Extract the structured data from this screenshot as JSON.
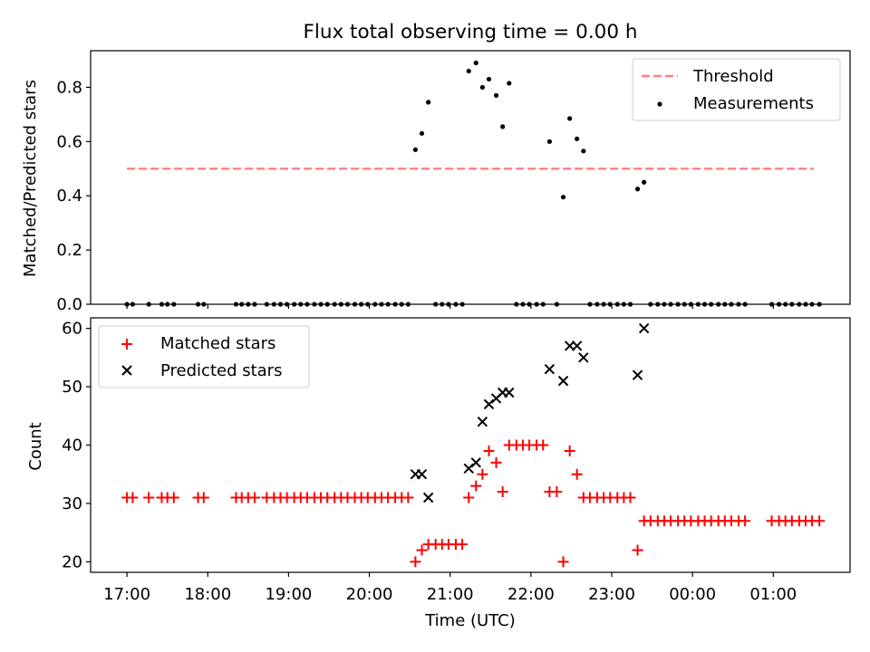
{
  "title": "Flux total observing time = 0.00 h",
  "colors": {
    "threshold": "#ff7f7f",
    "measurements": "#000000",
    "matched": "#ff0000",
    "predicted": "#000000"
  },
  "chart_data": [
    {
      "type": "scatter",
      "ylabel": "Matched/Predicted stars",
      "xlim": [
        16.55,
        25.95
      ],
      "ylim": [
        0,
        0.935
      ],
      "yticks": [
        0.0,
        0.2,
        0.4,
        0.6,
        0.8
      ],
      "ytick_labels": [
        "0.0",
        "0.2",
        "0.4",
        "0.6",
        "0.8"
      ],
      "legend_position": "top-right",
      "threshold": {
        "name": "Threshold",
        "x_range": [
          17.0,
          25.5
        ],
        "value": 0.5
      },
      "series": [
        {
          "name": "Measurements",
          "x": [
            17.0,
            17.07,
            17.27,
            17.43,
            17.5,
            17.58,
            17.88,
            17.95,
            18.35,
            18.42,
            18.5,
            18.58,
            18.73,
            18.82,
            18.9,
            18.98,
            19.07,
            19.15,
            19.23,
            19.32,
            19.4,
            19.48,
            19.57,
            19.65,
            19.73,
            19.82,
            19.9,
            19.98,
            20.07,
            20.15,
            20.23,
            20.32,
            20.4,
            20.48,
            20.57,
            20.65,
            20.73,
            20.82,
            20.9,
            20.98,
            21.07,
            21.15,
            21.23,
            21.32,
            21.4,
            21.48,
            21.57,
            21.65,
            21.73,
            21.82,
            21.9,
            21.98,
            22.07,
            22.15,
            22.23,
            22.32,
            22.4,
            22.48,
            22.57,
            22.65,
            22.73,
            22.82,
            22.9,
            22.98,
            23.07,
            23.15,
            23.23,
            23.32,
            23.4,
            23.48,
            23.57,
            23.65,
            23.73,
            23.82,
            23.9,
            23.98,
            24.07,
            24.15,
            24.23,
            24.32,
            24.4,
            24.48,
            24.57,
            24.65,
            24.98,
            25.07,
            25.15,
            25.23,
            25.32,
            25.4,
            25.48,
            25.57
          ],
          "y": [
            0,
            0,
            0,
            0,
            0,
            0,
            0,
            0,
            0,
            0,
            0,
            0,
            0,
            0,
            0,
            0,
            0,
            0,
            0,
            0,
            0,
            0,
            0,
            0,
            0,
            0,
            0,
            0,
            0,
            0,
            0,
            0,
            0,
            0,
            0.57,
            0.63,
            0.745,
            0,
            0,
            0,
            0,
            0,
            0.86,
            0.89,
            0.8,
            0.83,
            0.77,
            0.655,
            0.815,
            0,
            0,
            0,
            0,
            0,
            0.6,
            0,
            0.395,
            0.685,
            0.61,
            0.565,
            0,
            0,
            0,
            0,
            0,
            0,
            0,
            0.425,
            0.45,
            0,
            0,
            0,
            0,
            0,
            0,
            0,
            0,
            0,
            0,
            0,
            0,
            0,
            0,
            0,
            0,
            0,
            0,
            0,
            0,
            0,
            0,
            0
          ]
        }
      ]
    },
    {
      "type": "scatter",
      "ylabel": "Count",
      "xlabel": "Time (UTC)",
      "xlim": [
        16.55,
        25.95
      ],
      "ylim": [
        18.2,
        61.8
      ],
      "yticks": [
        20,
        30,
        40,
        50,
        60
      ],
      "ytick_labels": [
        "20",
        "30",
        "40",
        "50",
        "60"
      ],
      "xticks": [
        17,
        18,
        19,
        20,
        21,
        22,
        23,
        24,
        25
      ],
      "xtick_labels": [
        "17:00",
        "18:00",
        "19:00",
        "20:00",
        "21:00",
        "22:00",
        "23:00",
        "00:00",
        "01:00"
      ],
      "legend_position": "top-left",
      "series": [
        {
          "name": "Matched stars",
          "x": [
            17.0,
            17.07,
            17.27,
            17.43,
            17.5,
            17.58,
            17.88,
            17.95,
            18.35,
            18.42,
            18.5,
            18.58,
            18.73,
            18.82,
            18.9,
            18.98,
            19.07,
            19.15,
            19.23,
            19.32,
            19.4,
            19.48,
            19.57,
            19.65,
            19.73,
            19.82,
            19.9,
            19.98,
            20.07,
            20.15,
            20.23,
            20.32,
            20.4,
            20.48,
            20.57,
            20.65,
            20.73,
            20.82,
            20.9,
            20.98,
            21.07,
            21.15,
            21.23,
            21.32,
            21.4,
            21.48,
            21.57,
            21.65,
            21.73,
            21.82,
            21.9,
            21.98,
            22.07,
            22.15,
            22.23,
            22.32,
            22.4,
            22.48,
            22.57,
            22.65,
            22.73,
            22.82,
            22.9,
            22.98,
            23.07,
            23.15,
            23.23,
            23.32,
            23.4,
            23.48,
            23.57,
            23.65,
            23.73,
            23.82,
            23.9,
            23.98,
            24.07,
            24.15,
            24.23,
            24.32,
            24.4,
            24.48,
            24.57,
            24.65,
            24.98,
            25.07,
            25.15,
            25.23,
            25.32,
            25.4,
            25.48,
            25.57
          ],
          "y": [
            31,
            31,
            31,
            31,
            31,
            31,
            31,
            31,
            31,
            31,
            31,
            31,
            31,
            31,
            31,
            31,
            31,
            31,
            31,
            31,
            31,
            31,
            31,
            31,
            31,
            31,
            31,
            31,
            31,
            31,
            31,
            31,
            31,
            31,
            20,
            22,
            23,
            23,
            23,
            23,
            23,
            23,
            31,
            33,
            35,
            39,
            37,
            32,
            40,
            40,
            40,
            40,
            40,
            40,
            32,
            32,
            20,
            39,
            35,
            31,
            31,
            31,
            31,
            31,
            31,
            31,
            31,
            22,
            27,
            27,
            27,
            27,
            27,
            27,
            27,
            27,
            27,
            27,
            27,
            27,
            27,
            27,
            27,
            27,
            27,
            27,
            27,
            27,
            27,
            27,
            27,
            27
          ]
        },
        {
          "name": "Predicted stars",
          "x": [
            20.57,
            20.65,
            20.73,
            21.23,
            21.32,
            21.4,
            21.48,
            21.57,
            21.65,
            21.73,
            22.23,
            22.4,
            22.48,
            22.57,
            22.65,
            23.32,
            23.4
          ],
          "y": [
            35,
            35,
            31,
            36,
            37,
            44,
            47,
            48,
            49,
            49,
            53,
            51,
            57,
            57,
            55,
            52,
            60
          ]
        }
      ]
    }
  ]
}
